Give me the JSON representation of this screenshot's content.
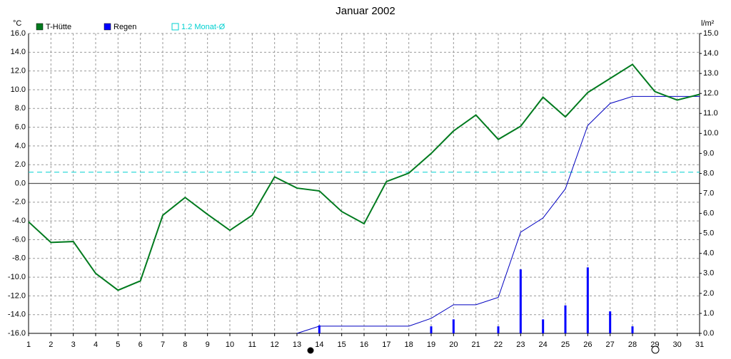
{
  "chart_data": {
    "type": "line",
    "title": "Januar 2002",
    "y_label": "°C",
    "y2_label": "l/m²",
    "x": [
      1,
      2,
      3,
      4,
      5,
      6,
      7,
      8,
      9,
      10,
      11,
      12,
      13,
      14,
      15,
      16,
      17,
      18,
      19,
      20,
      21,
      22,
      23,
      24,
      25,
      26,
      27,
      28,
      29,
      30,
      31
    ],
    "xlim": [
      1,
      31
    ],
    "xticks": [
      1,
      2,
      3,
      4,
      5,
      6,
      7,
      8,
      9,
      10,
      11,
      12,
      13,
      14,
      15,
      16,
      17,
      18,
      19,
      20,
      21,
      22,
      23,
      24,
      25,
      26,
      27,
      28,
      29,
      30,
      31
    ],
    "ylim": [
      -16,
      16
    ],
    "yticks": [
      {
        "value": -16,
        "label": "-16.0"
      },
      {
        "value": -14,
        "label": "-14.0"
      },
      {
        "value": -12,
        "label": "-12.0"
      },
      {
        "value": -10,
        "label": "-10.0"
      },
      {
        "value": -8,
        "label": "-8.0"
      },
      {
        "value": -6,
        "label": "-6.0"
      },
      {
        "value": -4,
        "label": "-4.0"
      },
      {
        "value": -2,
        "label": "-2.0"
      },
      {
        "value": 0,
        "label": "0.0"
      },
      {
        "value": 2,
        "label": "2.0"
      },
      {
        "value": 4,
        "label": "4.0"
      },
      {
        "value": 6,
        "label": "6.0"
      },
      {
        "value": 8,
        "label": "8.0"
      },
      {
        "value": 10,
        "label": "10.0"
      },
      {
        "value": 12,
        "label": "12.0"
      },
      {
        "value": 14,
        "label": "14.0"
      },
      {
        "value": 16,
        "label": "16.0"
      }
    ],
    "y2lim": [
      0,
      15
    ],
    "y2ticks": [
      {
        "value": 0,
        "label": "0.0"
      },
      {
        "value": 1,
        "label": "1.0"
      },
      {
        "value": 2,
        "label": "2.0"
      },
      {
        "value": 3,
        "label": "3.0"
      },
      {
        "value": 4,
        "label": "4.0"
      },
      {
        "value": 5,
        "label": "5.0"
      },
      {
        "value": 6,
        "label": "6.0"
      },
      {
        "value": 7,
        "label": "7.0"
      },
      {
        "value": 8,
        "label": "8.0"
      },
      {
        "value": 9,
        "label": "9.0"
      },
      {
        "value": 10,
        "label": "10.0"
      },
      {
        "value": 11,
        "label": "11.0"
      },
      {
        "value": 12,
        "label": "12.0"
      },
      {
        "value": 13,
        "label": "13.0"
      },
      {
        "value": 14,
        "label": "14.0"
      },
      {
        "value": 15,
        "label": "15.0"
      }
    ],
    "grid": true,
    "series": [
      {
        "name": "T-Hütte",
        "color": "#007a1e",
        "type": "line",
        "values": [
          -4.1,
          -6.3,
          -6.2,
          -9.6,
          -11.4,
          -10.4,
          -3.4,
          -1.5,
          -3.3,
          -5.0,
          -3.4,
          0.7,
          -0.5,
          -0.8,
          -3.0,
          -4.3,
          0.2,
          1.1,
          3.2,
          5.6,
          7.3,
          4.7,
          6.1,
          9.2,
          7.1,
          9.7,
          11.2,
          12.7,
          9.8,
          8.9,
          9.5
        ]
      },
      {
        "name": "Regen",
        "color": "#0000ff",
        "type": "bar",
        "axis": "y2",
        "values": [
          null,
          null,
          null,
          null,
          null,
          null,
          null,
          null,
          null,
          null,
          null,
          null,
          null,
          0.4,
          null,
          null,
          null,
          null,
          0.35,
          0.7,
          null,
          0.35,
          3.2,
          0.7,
          1.4,
          3.3,
          1.1,
          0.35,
          null,
          null,
          null
        ]
      }
    ],
    "rain_total": {
      "color": "#0000c0",
      "axis": "y2",
      "values": [
        null,
        null,
        null,
        null,
        null,
        null,
        null,
        null,
        null,
        null,
        null,
        null,
        0,
        0.36,
        0.36,
        0.36,
        0.36,
        0.36,
        0.75,
        1.43,
        1.43,
        1.8,
        5.06,
        5.77,
        7.23,
        10.4,
        11.5,
        11.85,
        11.85,
        11.85,
        11.85
      ]
    },
    "reference_line": {
      "label": "1.2 Monat-Ø",
      "value": 1.2,
      "color": "#00d0d0"
    }
  }
}
